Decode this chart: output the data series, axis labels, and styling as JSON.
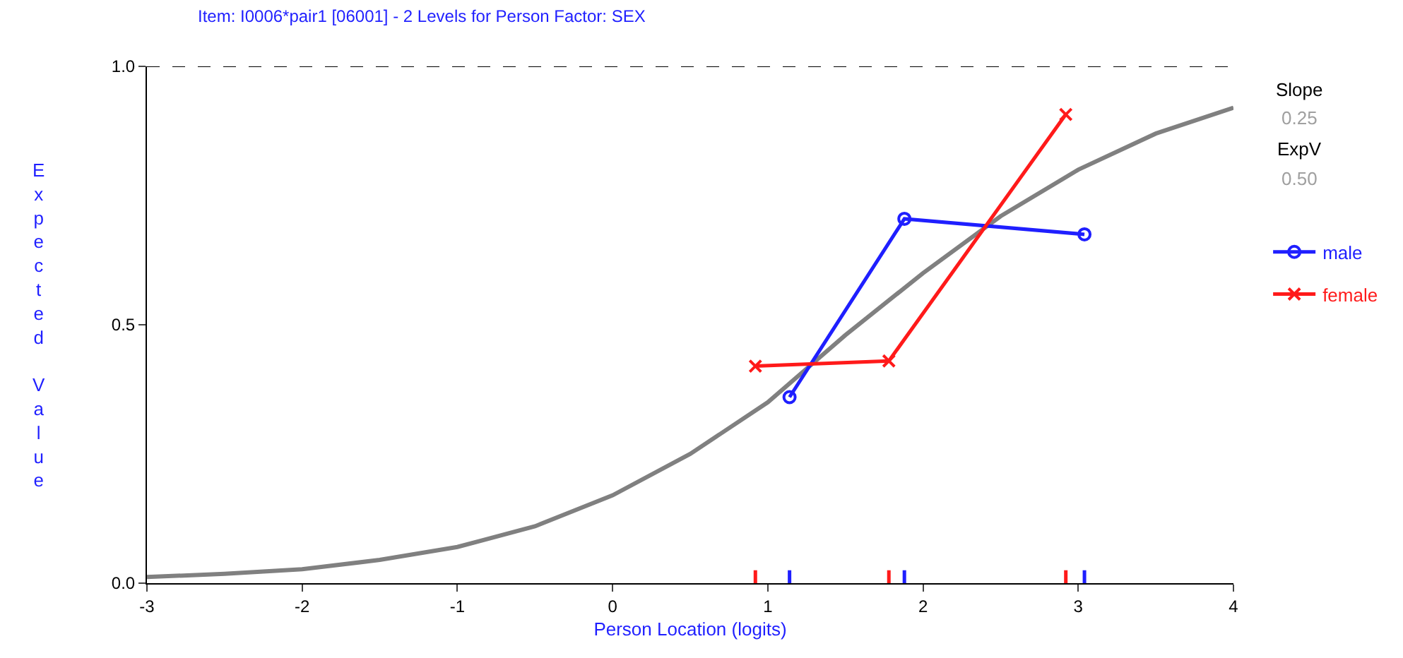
{
  "chart_data": {
    "type": "line",
    "title": "Item: I0006*pair1 [06001] - 2 Levels for Person Factor: SEX",
    "xlabel": "Person Location (logits)",
    "ylabel": "Expected Value",
    "xlim": [
      -3,
      4
    ],
    "xticks": [
      -3,
      -2,
      -1,
      0,
      1,
      2,
      3,
      4
    ],
    "ylim": [
      0,
      1
    ],
    "yticks": [
      {
        "value": 0,
        "label": "0.0"
      },
      {
        "value": 0.5,
        "label": "0.5"
      },
      {
        "value": 1,
        "label": "1.0"
      }
    ],
    "legend": "right",
    "series": [
      {
        "color": "#808080",
        "marker": "none",
        "x": [
          -3,
          -2.5,
          -2,
          -1.5,
          -1,
          -0.5,
          0,
          0.5,
          1,
          1.5,
          2,
          2.5,
          3,
          3.5,
          4
        ],
        "values": [
          0.012,
          0.018,
          0.027,
          0.045,
          0.07,
          0.11,
          0.17,
          0.25,
          0.35,
          0.48,
          0.6,
          0.71,
          0.8,
          0.87,
          0.92
        ]
      },
      {
        "name": "male",
        "color": "#1f1fff",
        "marker": "circle",
        "x": [
          1.14,
          1.88,
          3.04
        ],
        "values": [
          0.36,
          0.705,
          0.675
        ]
      },
      {
        "name": "female",
        "color": "#ff1a1a",
        "marker": "cross",
        "x": [
          0.92,
          1.78,
          2.92
        ],
        "values": [
          0.42,
          0.43,
          0.907
        ]
      }
    ],
    "ref_lines": [
      {
        "axis": "y",
        "value": 1,
        "color": "#000000",
        "line_style": "dashed"
      }
    ],
    "annotations": [
      "Slope",
      "0.25",
      "ExpV",
      "0.50"
    ]
  }
}
